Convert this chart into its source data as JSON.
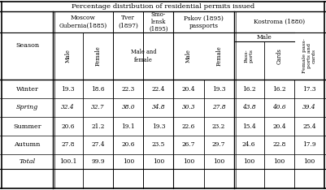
{
  "title": "Percentage distribution of residential permits issued",
  "rows": [
    {
      "season": "Winter",
      "vals": [
        "19.3",
        "18.6",
        "22.3",
        "22.4",
        "20.4",
        "19.3",
        "16.2",
        "16.2",
        "17.3"
      ]
    },
    {
      "season": "Spring",
      "vals": [
        "32.4",
        "32.7",
        "38.0",
        "34.8",
        "30.3",
        "27.8",
        "43.8",
        "40.6",
        "39.4"
      ]
    },
    {
      "season": "Summer",
      "vals": [
        "20.6",
        "21.2",
        "19.1",
        "19.3",
        "22.6",
        "23.2",
        "15.4",
        "20.4",
        "25.4"
      ]
    },
    {
      "season": "Autumn",
      "vals": [
        "27.8",
        "27.4",
        "20.6",
        "23.5",
        "26.7",
        "29.7",
        "24.6",
        "22.8",
        "17.9"
      ]
    }
  ],
  "totals": [
    "100.1",
    "99.9",
    "100",
    "100",
    "100",
    "100",
    "100",
    "100",
    "100"
  ],
  "background": "#ffffff",
  "line_color": "#000000",
  "font_size": 5.8
}
